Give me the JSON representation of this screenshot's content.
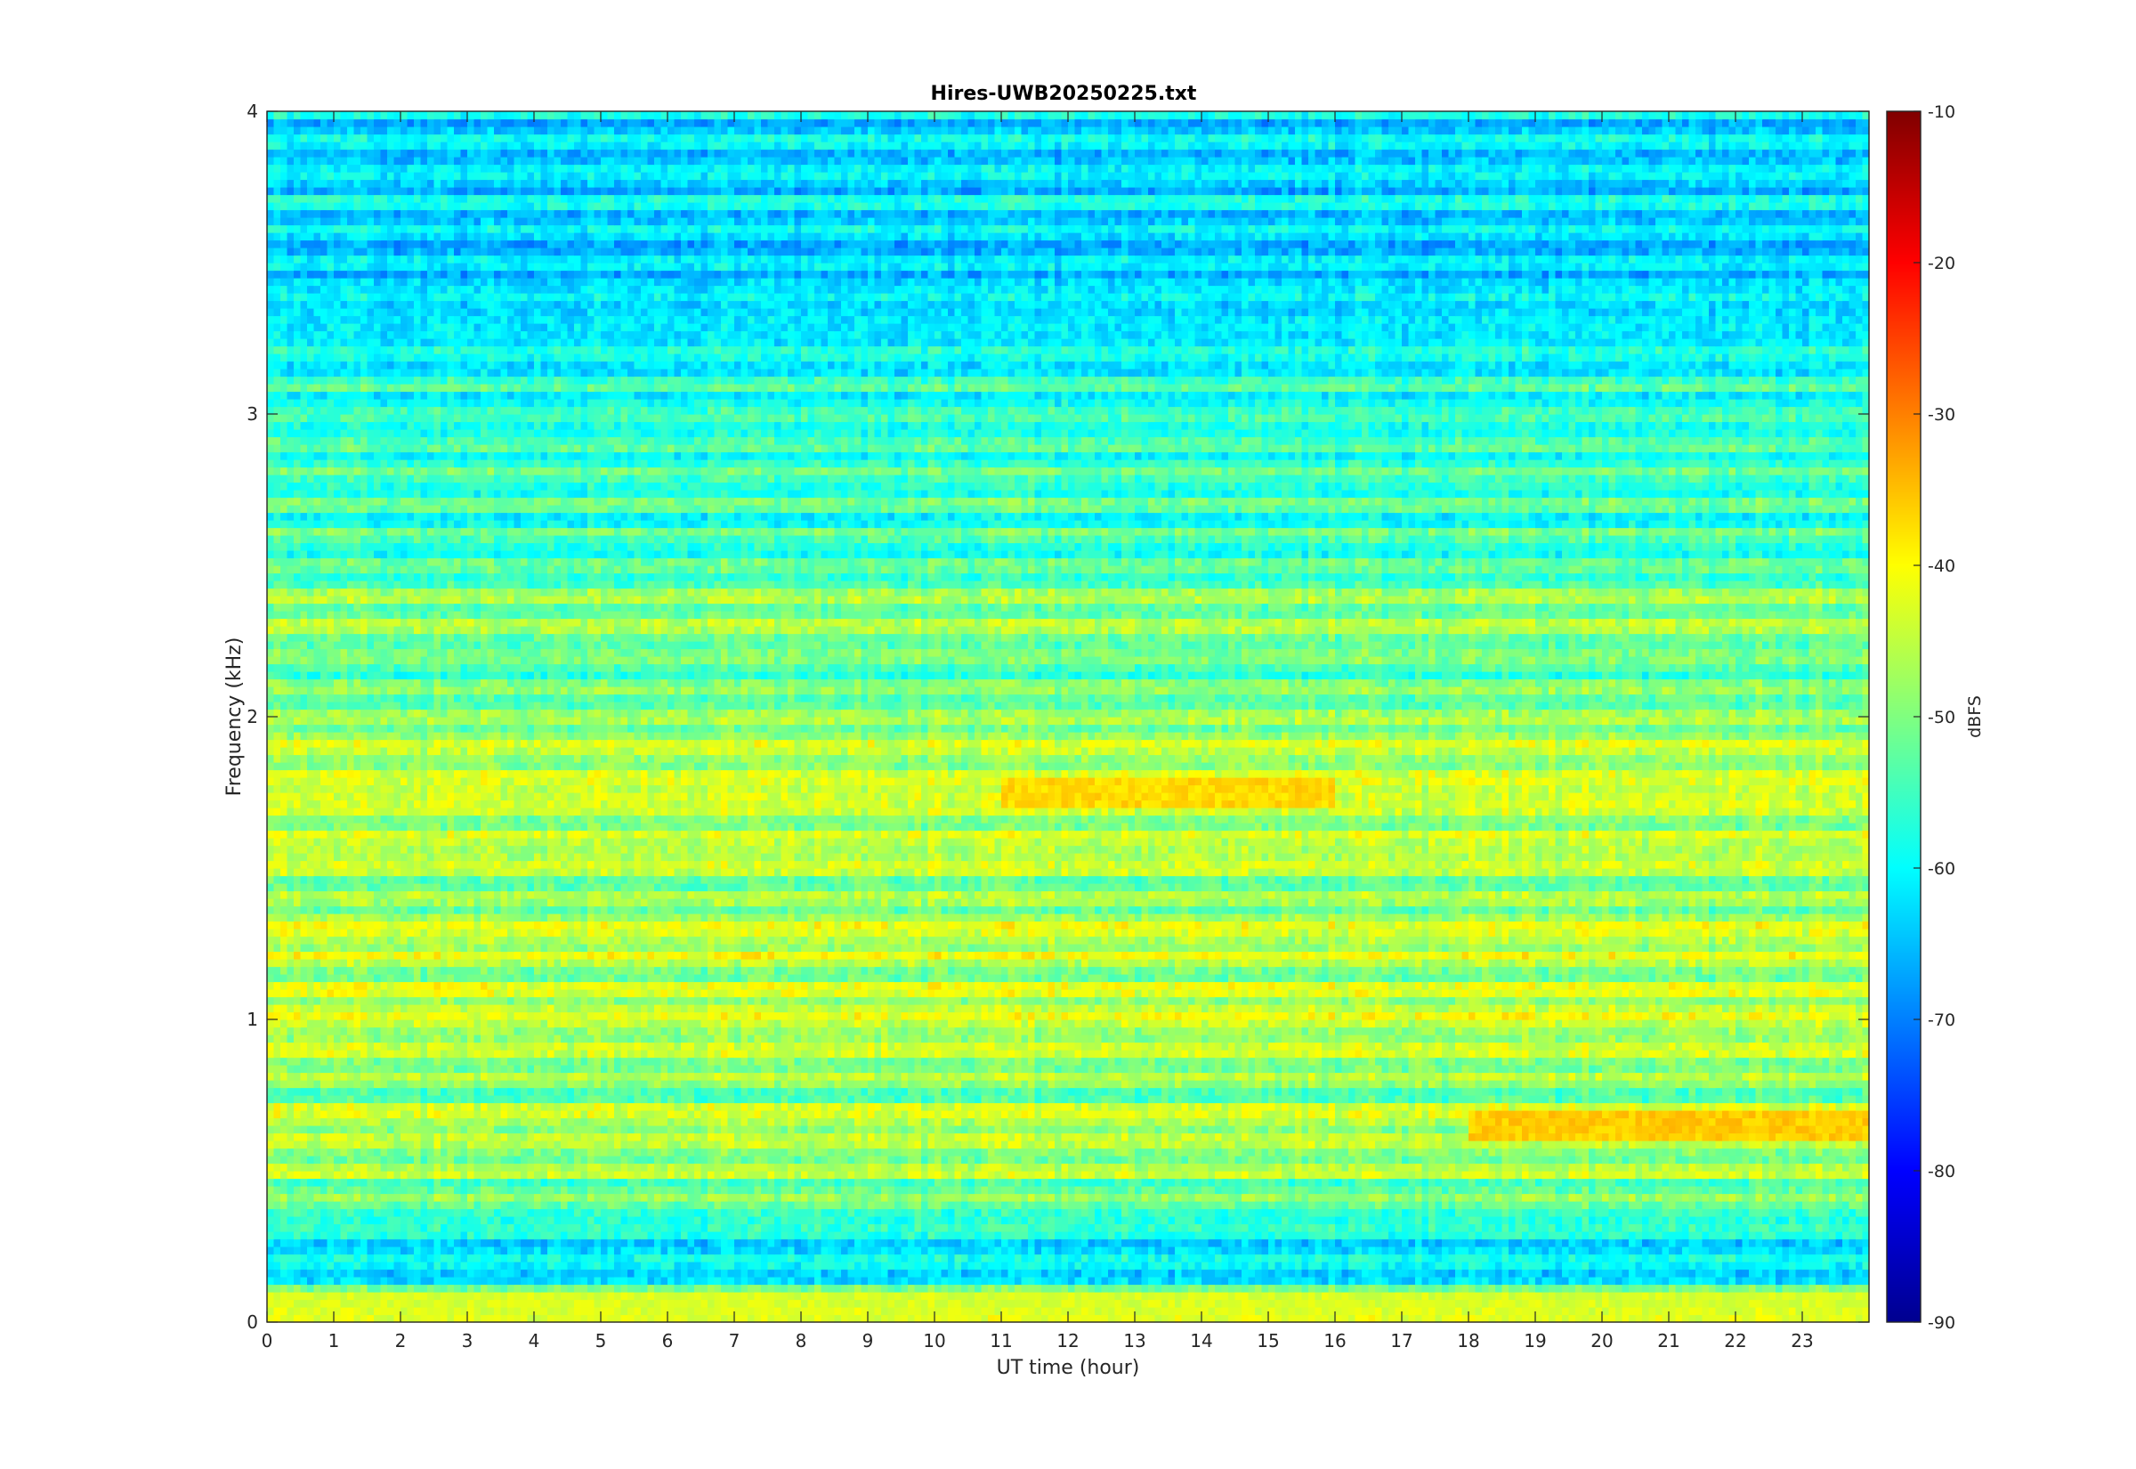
{
  "chart_data": {
    "type": "heatmap",
    "title": "Hires-UWB20250225.txt",
    "xlabel": "UT time (hour)",
    "ylabel": "Frequency (kHz)",
    "xlim": [
      0,
      24
    ],
    "ylim": [
      0,
      4
    ],
    "x_ticks": [
      "0",
      "1",
      "2",
      "3",
      "4",
      "5",
      "6",
      "7",
      "8",
      "9",
      "10",
      "11",
      "12",
      "13",
      "14",
      "15",
      "16",
      "17",
      "18",
      "19",
      "20",
      "21",
      "22",
      "23"
    ],
    "y_ticks": [
      "0",
      "1",
      "2",
      "3",
      "4"
    ],
    "colorbar": {
      "label": "dBFS",
      "range": [
        -90,
        -10
      ],
      "ticks": [
        "-10",
        "-20",
        "-30",
        "-40",
        "-50",
        "-60",
        "-70",
        "-80",
        "-90"
      ],
      "colormap": "jet"
    },
    "colormap_stops": [
      "#00008f",
      "#0000ff",
      "#0080ff",
      "#00ffff",
      "#80ff80",
      "#ffff00",
      "#ff8000",
      "#ff0000",
      "#800000"
    ],
    "band_profile_khz": [
      {
        "f": 0.05,
        "db": -44
      },
      {
        "f": 0.15,
        "db": -62
      },
      {
        "f": 0.3,
        "db": -58
      },
      {
        "f": 0.45,
        "db": -50
      },
      {
        "f": 0.55,
        "db": -47
      },
      {
        "f": 0.65,
        "db": -44
      },
      {
        "f": 0.75,
        "db": -50
      },
      {
        "f": 0.85,
        "db": -48
      },
      {
        "f": 0.95,
        "db": -47
      },
      {
        "f": 1.05,
        "db": -44
      },
      {
        "f": 1.15,
        "db": -47
      },
      {
        "f": 1.25,
        "db": -45
      },
      {
        "f": 1.35,
        "db": -47
      },
      {
        "f": 1.45,
        "db": -48
      },
      {
        "f": 1.55,
        "db": -45
      },
      {
        "f": 1.65,
        "db": -48
      },
      {
        "f": 1.75,
        "db": -42
      },
      {
        "f": 1.85,
        "db": -46
      },
      {
        "f": 1.95,
        "db": -48
      },
      {
        "f": 2.1,
        "db": -52
      },
      {
        "f": 2.35,
        "db": -50
      },
      {
        "f": 2.6,
        "db": -56
      },
      {
        "f": 2.95,
        "db": -55
      },
      {
        "f": 3.3,
        "db": -62
      },
      {
        "f": 3.7,
        "db": -63
      },
      {
        "f": 3.95,
        "db": -62
      }
    ],
    "hotspots": [
      {
        "x0": 11,
        "x1": 16,
        "f": 1.75,
        "db": -37
      },
      {
        "x0": 18,
        "x1": 24,
        "f": 0.65,
        "db": -36
      },
      {
        "x0": 0,
        "x1": 24,
        "f": 0.05,
        "db": -43
      }
    ]
  }
}
